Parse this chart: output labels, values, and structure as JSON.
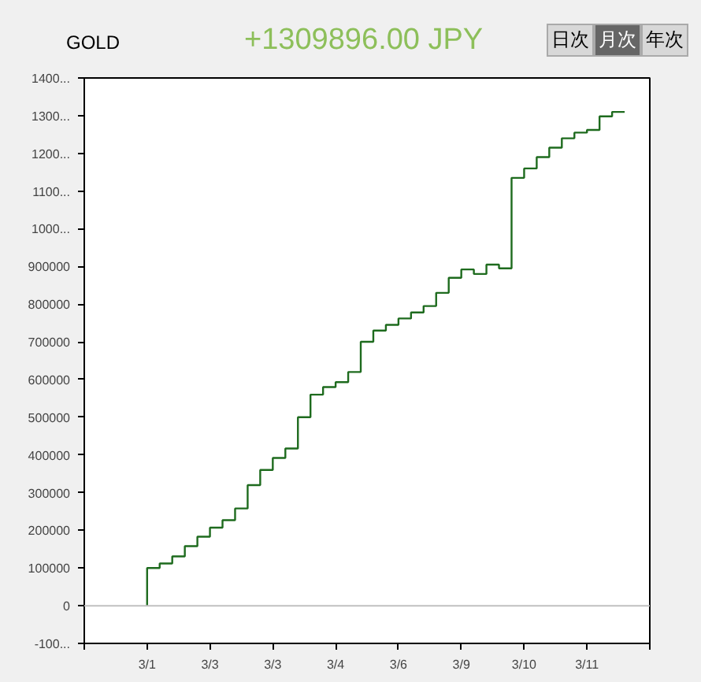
{
  "chart_data": {
    "type": "step",
    "title": "GOLD",
    "subtitle": "+1309896.00 JPY",
    "annotations": [
      "日次",
      "月次",
      "年次"
    ],
    "categories": [
      null,
      null,
      null,
      null,
      null,
      "3/1",
      null,
      null,
      null,
      null,
      "3/3",
      null,
      null,
      null,
      null,
      "3/3",
      null,
      null,
      null,
      null,
      "3/4",
      null,
      null,
      null,
      null,
      "3/6",
      null,
      null,
      null,
      null,
      "3/9",
      null,
      null,
      null,
      null,
      "3/10",
      null,
      null,
      null,
      null,
      "3/11",
      null,
      null,
      null,
      null,
      null
    ],
    "series": [
      {
        "color": "#1e6b1e",
        "values": [
          null,
          null,
          null,
          null,
          null,
          0,
          100000,
          112000,
          131000,
          158000,
          183000,
          207000,
          227000,
          258000,
          320000,
          360000,
          392000,
          417000,
          500000,
          560000,
          580000,
          593000,
          620000,
          700000,
          730000,
          745000,
          762000,
          778000,
          795000,
          830000,
          870000,
          892000,
          880000,
          905000,
          895000,
          1135000,
          1160000,
          1190000,
          1215000,
          1240000,
          1255000,
          1262000,
          1298000,
          1310000,
          null,
          null
        ]
      }
    ],
    "ylim": [
      -100000,
      1400000
    ],
    "yticks": [
      {
        "value": -100000,
        "label": "-100..."
      },
      0,
      100000,
      200000,
      300000,
      400000,
      500000,
      600000,
      700000,
      800000,
      900000,
      {
        "value": 1000000,
        "label": "1000..."
      },
      {
        "value": 1100000,
        "label": "1100..."
      },
      {
        "value": 1200000,
        "label": "1200..."
      },
      {
        "value": 1300000,
        "label": "1300..."
      },
      {
        "value": 1400000,
        "label": "1400..."
      }
    ],
    "ref_lines": [
      {
        "axis": "y",
        "value": 0,
        "color": "#c0c0c0"
      }
    ],
    "grid": false,
    "line_style": "solid",
    "marker": "none"
  }
}
